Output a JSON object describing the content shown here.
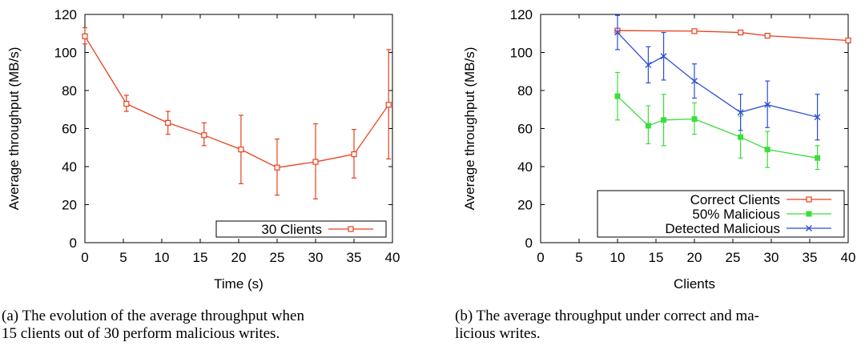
{
  "chart_data": [
    {
      "type": "line",
      "title": "",
      "xlabel": "Time (s)",
      "ylabel": "Average throughput (MB/s)",
      "xlim": [
        0,
        40
      ],
      "ylim": [
        0,
        120
      ],
      "xticks": [
        "0",
        "5",
        "10",
        "15",
        "20",
        "25",
        "30",
        "35",
        "40"
      ],
      "yticks": [
        "0",
        "20",
        "40",
        "60",
        "80",
        "100",
        "120"
      ],
      "grid": false,
      "legend_position": "bottom-right",
      "series": [
        {
          "name": "30 Clients",
          "color": "#e8401c",
          "marker": "square",
          "x": [
            0,
            5.4,
            10.8,
            15.5,
            20.3,
            25,
            30,
            35,
            39.5
          ],
          "y": [
            108.5,
            73,
            63,
            56.5,
            49,
            39.5,
            42.5,
            46.5,
            72.5
          ],
          "err_low": [
            104.5,
            69,
            57,
            51,
            31,
            25,
            23,
            34,
            44
          ],
          "err_high": [
            113,
            77.5,
            69,
            63,
            67,
            54.5,
            62.5,
            59.5,
            101.5
          ]
        }
      ],
      "caption": [
        "(a)  The evolution of the average throughput when",
        "15 clients out of 30 perform malicious writes."
      ]
    },
    {
      "type": "line",
      "title": "",
      "xlabel": "Clients",
      "ylabel": "Average throughput (MB/s)",
      "xlim": [
        0,
        40
      ],
      "ylim": [
        0,
        120
      ],
      "xticks": [
        "0",
        "5",
        "10",
        "15",
        "20",
        "25",
        "30",
        "35",
        "40"
      ],
      "yticks": [
        "0",
        "20",
        "40",
        "60",
        "80",
        "100",
        "120"
      ],
      "grid": false,
      "legend_position": "bottom-right",
      "series": [
        {
          "name": "Correct Clients",
          "color": "#e8401c",
          "marker": "square",
          "x": [
            10,
            20,
            26,
            29.5,
            40
          ],
          "y": [
            111.5,
            111.2,
            110.5,
            108.8,
            106.3
          ],
          "err_low": null,
          "err_high": null
        },
        {
          "name": "50% Malicious",
          "color": "#3cde3c",
          "marker": "filled-square",
          "x": [
            10,
            14,
            16,
            20,
            26,
            29.5,
            36
          ],
          "y": [
            77,
            61.5,
            64.5,
            65,
            55.5,
            49,
            44.5
          ],
          "err_low": [
            64.5,
            52,
            51,
            57,
            44.5,
            39.5,
            38.5
          ],
          "err_high": [
            89.5,
            72,
            78,
            73.5,
            66.5,
            58.5,
            51
          ]
        },
        {
          "name": "Detected Malicious",
          "color": "#2a4fd6",
          "marker": "x",
          "x": [
            10,
            14,
            16,
            20,
            26,
            29.5,
            36
          ],
          "y": [
            110.5,
            93.5,
            98,
            85,
            68.5,
            72.5,
            66
          ],
          "err_low": [
            101.5,
            84,
            85.5,
            76,
            59,
            60.5,
            54
          ],
          "err_high": [
            119.5,
            103,
            110.5,
            94,
            78,
            85,
            78
          ]
        }
      ],
      "caption": [
        "(b)  The average throughput under correct and ma-",
        "licious writes."
      ]
    }
  ]
}
